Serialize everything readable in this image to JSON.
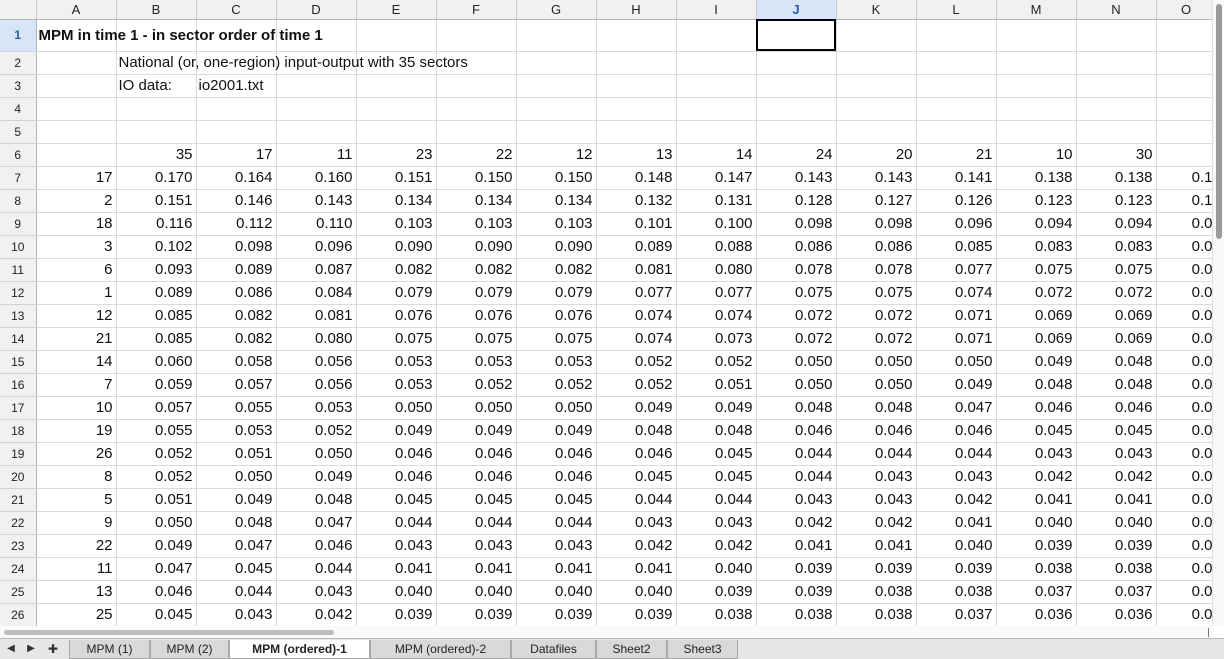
{
  "columns": [
    "A",
    "B",
    "C",
    "D",
    "E",
    "F",
    "G",
    "H",
    "I",
    "J",
    "K",
    "L",
    "M",
    "N",
    "O"
  ],
  "active_column": "J",
  "active_row": 1,
  "title": "MPM in time 1 - in sector order of time 1",
  "subtitle": "National (or, one-region) input-output with 35 sectors",
  "io_label": "IO data:",
  "io_file": "io2001.txt",
  "header_sectors": [
    "35",
    "17",
    "11",
    "23",
    "22",
    "12",
    "13",
    "14",
    "24",
    "20",
    "21",
    "10",
    "30"
  ],
  "rows": [
    {
      "sector": "17",
      "vals": [
        "0.170",
        "0.164",
        "0.160",
        "0.151",
        "0.150",
        "0.150",
        "0.148",
        "0.147",
        "0.143",
        "0.143",
        "0.141",
        "0.138",
        "0.138",
        "0.1"
      ]
    },
    {
      "sector": "2",
      "vals": [
        "0.151",
        "0.146",
        "0.143",
        "0.134",
        "0.134",
        "0.134",
        "0.132",
        "0.131",
        "0.128",
        "0.127",
        "0.126",
        "0.123",
        "0.123",
        "0.1"
      ]
    },
    {
      "sector": "18",
      "vals": [
        "0.116",
        "0.112",
        "0.110",
        "0.103",
        "0.103",
        "0.103",
        "0.101",
        "0.100",
        "0.098",
        "0.098",
        "0.096",
        "0.094",
        "0.094",
        "0.0"
      ]
    },
    {
      "sector": "3",
      "vals": [
        "0.102",
        "0.098",
        "0.096",
        "0.090",
        "0.090",
        "0.090",
        "0.089",
        "0.088",
        "0.086",
        "0.086",
        "0.085",
        "0.083",
        "0.083",
        "0.0"
      ]
    },
    {
      "sector": "6",
      "vals": [
        "0.093",
        "0.089",
        "0.087",
        "0.082",
        "0.082",
        "0.082",
        "0.081",
        "0.080",
        "0.078",
        "0.078",
        "0.077",
        "0.075",
        "0.075",
        "0.0"
      ]
    },
    {
      "sector": "1",
      "vals": [
        "0.089",
        "0.086",
        "0.084",
        "0.079",
        "0.079",
        "0.079",
        "0.077",
        "0.077",
        "0.075",
        "0.075",
        "0.074",
        "0.072",
        "0.072",
        "0.0"
      ]
    },
    {
      "sector": "12",
      "vals": [
        "0.085",
        "0.082",
        "0.081",
        "0.076",
        "0.076",
        "0.076",
        "0.074",
        "0.074",
        "0.072",
        "0.072",
        "0.071",
        "0.069",
        "0.069",
        "0.0"
      ]
    },
    {
      "sector": "21",
      "vals": [
        "0.085",
        "0.082",
        "0.080",
        "0.075",
        "0.075",
        "0.075",
        "0.074",
        "0.073",
        "0.072",
        "0.072",
        "0.071",
        "0.069",
        "0.069",
        "0.0"
      ]
    },
    {
      "sector": "14",
      "vals": [
        "0.060",
        "0.058",
        "0.056",
        "0.053",
        "0.053",
        "0.053",
        "0.052",
        "0.052",
        "0.050",
        "0.050",
        "0.050",
        "0.049",
        "0.048",
        "0.0"
      ]
    },
    {
      "sector": "7",
      "vals": [
        "0.059",
        "0.057",
        "0.056",
        "0.053",
        "0.052",
        "0.052",
        "0.052",
        "0.051",
        "0.050",
        "0.050",
        "0.049",
        "0.048",
        "0.048",
        "0.0"
      ]
    },
    {
      "sector": "10",
      "vals": [
        "0.057",
        "0.055",
        "0.053",
        "0.050",
        "0.050",
        "0.050",
        "0.049",
        "0.049",
        "0.048",
        "0.048",
        "0.047",
        "0.046",
        "0.046",
        "0.0"
      ]
    },
    {
      "sector": "19",
      "vals": [
        "0.055",
        "0.053",
        "0.052",
        "0.049",
        "0.049",
        "0.049",
        "0.048",
        "0.048",
        "0.046",
        "0.046",
        "0.046",
        "0.045",
        "0.045",
        "0.0"
      ]
    },
    {
      "sector": "26",
      "vals": [
        "0.052",
        "0.051",
        "0.050",
        "0.046",
        "0.046",
        "0.046",
        "0.046",
        "0.045",
        "0.044",
        "0.044",
        "0.044",
        "0.043",
        "0.043",
        "0.0"
      ]
    },
    {
      "sector": "8",
      "vals": [
        "0.052",
        "0.050",
        "0.049",
        "0.046",
        "0.046",
        "0.046",
        "0.045",
        "0.045",
        "0.044",
        "0.043",
        "0.043",
        "0.042",
        "0.042",
        "0.0"
      ]
    },
    {
      "sector": "5",
      "vals": [
        "0.051",
        "0.049",
        "0.048",
        "0.045",
        "0.045",
        "0.045",
        "0.044",
        "0.044",
        "0.043",
        "0.043",
        "0.042",
        "0.041",
        "0.041",
        "0.0"
      ]
    },
    {
      "sector": "9",
      "vals": [
        "0.050",
        "0.048",
        "0.047",
        "0.044",
        "0.044",
        "0.044",
        "0.043",
        "0.043",
        "0.042",
        "0.042",
        "0.041",
        "0.040",
        "0.040",
        "0.0"
      ]
    },
    {
      "sector": "22",
      "vals": [
        "0.049",
        "0.047",
        "0.046",
        "0.043",
        "0.043",
        "0.043",
        "0.042",
        "0.042",
        "0.041",
        "0.041",
        "0.040",
        "0.039",
        "0.039",
        "0.0"
      ]
    },
    {
      "sector": "11",
      "vals": [
        "0.047",
        "0.045",
        "0.044",
        "0.041",
        "0.041",
        "0.041",
        "0.041",
        "0.040",
        "0.039",
        "0.039",
        "0.039",
        "0.038",
        "0.038",
        "0.0"
      ]
    },
    {
      "sector": "13",
      "vals": [
        "0.046",
        "0.044",
        "0.043",
        "0.040",
        "0.040",
        "0.040",
        "0.040",
        "0.039",
        "0.039",
        "0.038",
        "0.038",
        "0.037",
        "0.037",
        "0.0"
      ]
    },
    {
      "sector": "25",
      "vals": [
        "0.045",
        "0.043",
        "0.042",
        "0.039",
        "0.039",
        "0.039",
        "0.039",
        "0.038",
        "0.038",
        "0.038",
        "0.037",
        "0.036",
        "0.036",
        "0.0"
      ]
    }
  ],
  "tabs": [
    "MPM (1)",
    "MPM (2)",
    "MPM (ordered)-1",
    "MPM (ordered)-2",
    "Datafiles",
    "Sheet2",
    "Sheet3"
  ],
  "active_tab": "MPM (ordered)-1",
  "nav": {
    "prev": "◀",
    "next": "▶",
    "add": "✚"
  }
}
